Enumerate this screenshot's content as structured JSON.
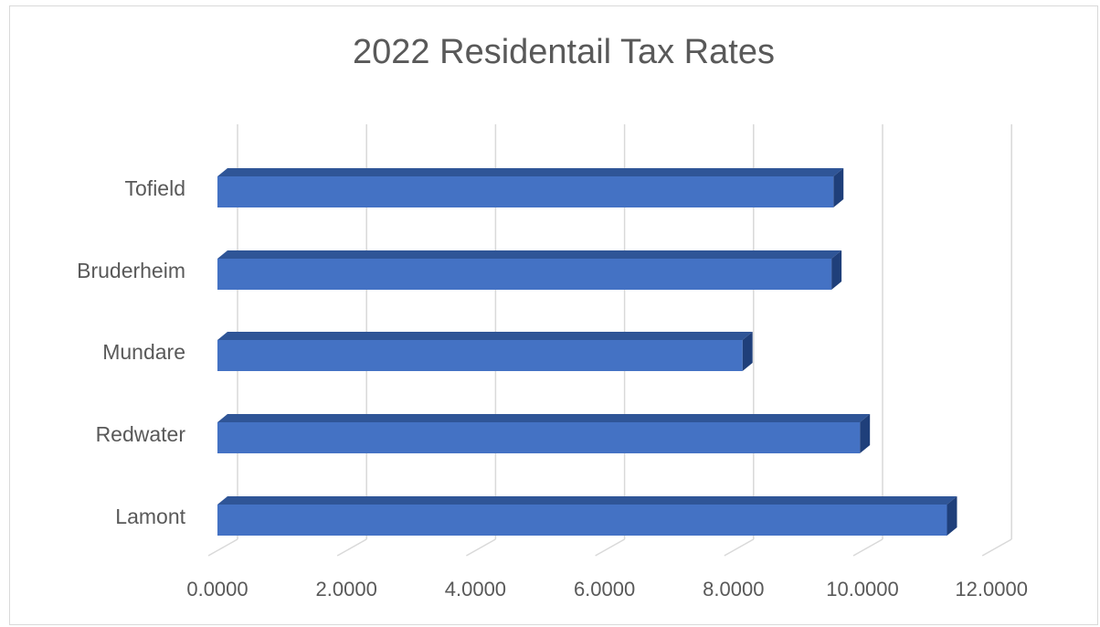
{
  "chart_data": {
    "type": "bar",
    "orientation": "horizontal",
    "style": "3d-clustered-bar",
    "title": "2022 Residentail Tax Rates",
    "categories": [
      "Tofield",
      "Bruderheim",
      "Mundare",
      "Redwater",
      "Lamont"
    ],
    "values": [
      9.55,
      9.52,
      8.14,
      9.96,
      11.31
    ],
    "xlim": [
      0,
      12
    ],
    "x_ticks": [
      "0.0000",
      "2.0000",
      "4.0000",
      "6.0000",
      "8.0000",
      "10.0000",
      "12.0000"
    ],
    "grid": "vertical",
    "legend": "none",
    "bar_color": "#4472c4",
    "bar_top_color": "#2f5597",
    "bar_side_color": "#1f3f7a",
    "grid_color": "#d9d9d9",
    "text_color": "#595959"
  }
}
